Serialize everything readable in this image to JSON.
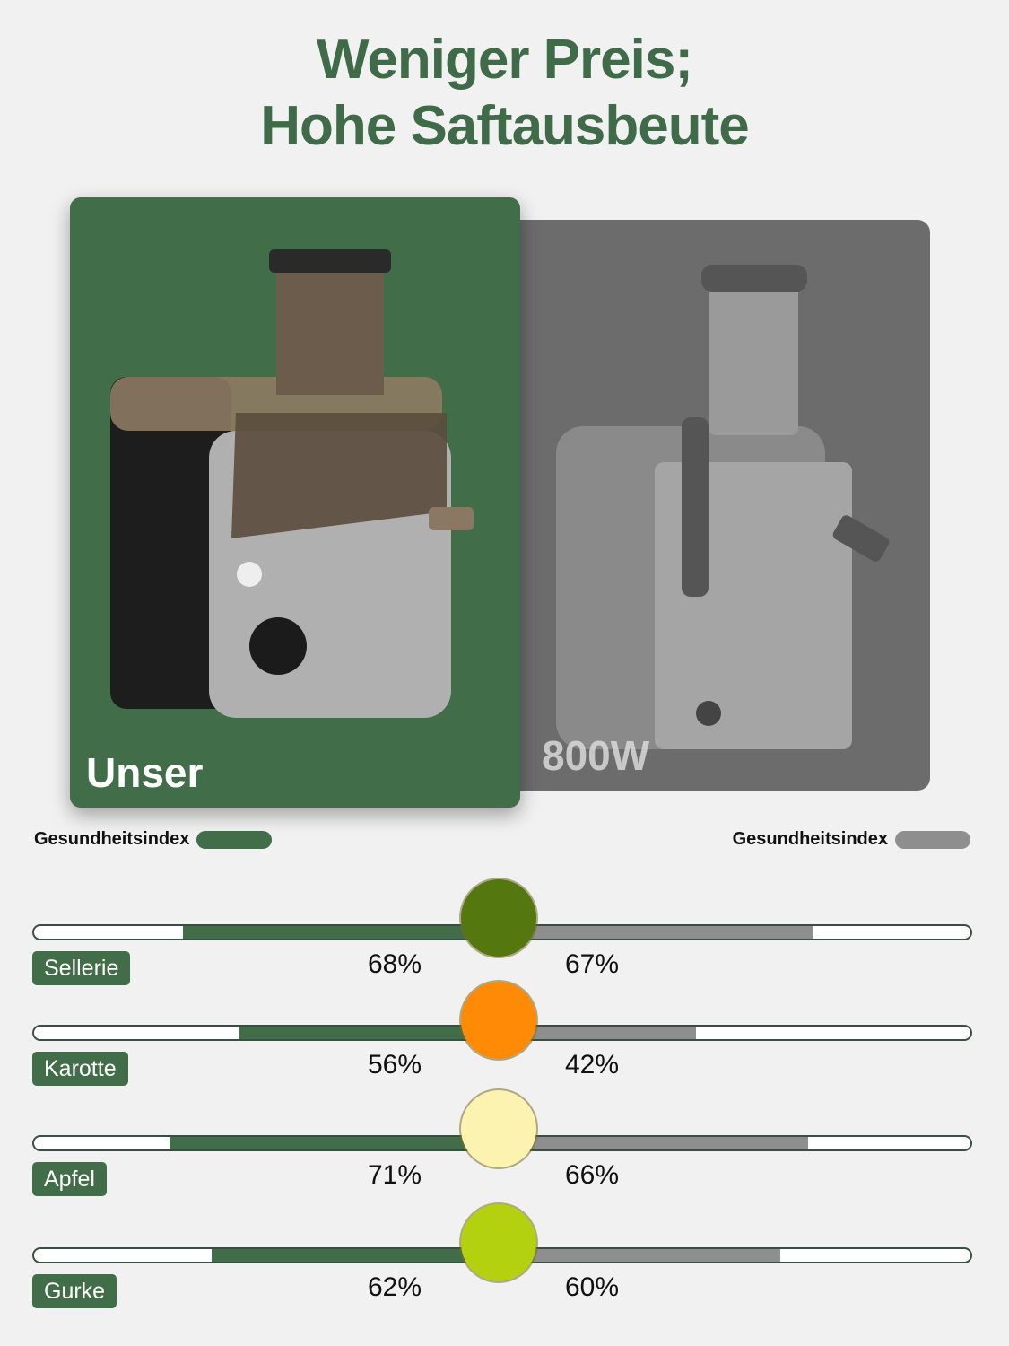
{
  "header": {
    "line1": "Weniger Preis;",
    "line2": "Hohe Saftausbeute"
  },
  "products": [
    {
      "label": "Unser",
      "color": "#416d48"
    },
    {
      "label": "800W",
      "color": "#6c6c6c"
    }
  ],
  "chart_data": {
    "type": "bar",
    "title": "",
    "legend": [
      {
        "name": "Gesundheitsindex",
        "color": "#416d48",
        "placement": "top-left"
      },
      {
        "name": "Gesundheitsindex",
        "color": "#8e8e8e",
        "placement": "top-right"
      }
    ],
    "categories": [
      "Sellerie",
      "Karotte",
      "Apfel",
      "Gurke"
    ],
    "series": [
      {
        "name": "Gesundheitsindex",
        "values": [
          68,
          56,
          71,
          62
        ],
        "labels": [
          "68%",
          "56%",
          "71%",
          "62%"
        ],
        "color": "#416d48"
      },
      {
        "name": "Gesundheitsindex",
        "values": [
          67,
          42,
          66,
          60
        ],
        "labels": [
          "67%",
          "42%",
          "66%",
          "60%"
        ],
        "color": "#8e8e8e"
      }
    ],
    "marker_colors": [
      "#557710",
      "#ff8a05",
      "#fdf3b0",
      "#b3d10f"
    ],
    "ylim": [
      0,
      100
    ]
  }
}
